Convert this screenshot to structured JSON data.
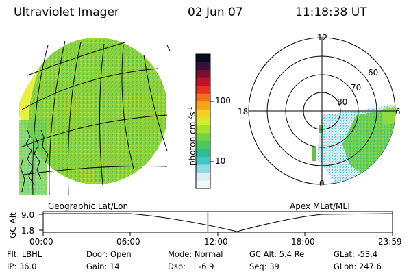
{
  "header": {
    "title": "Ultraviolet Imager",
    "date": "02 Jun 07",
    "time": "11:18:38 UT"
  },
  "left_panel": {
    "label": "Geographic Lat/Lon"
  },
  "colorbar": {
    "unit_text": "photon cm",
    "unit_exp1": "-2",
    "unit_s": "s",
    "unit_exp2": "-1",
    "tick_100": "100",
    "tick_10": "10",
    "scale": "log",
    "colors": [
      "#0b0b25",
      "#3a0f3a",
      "#7a0f2e",
      "#c0102a",
      "#ea2f1d",
      "#f4701a",
      "#f7a418",
      "#f6d021",
      "#d8ea2c",
      "#a6e22b",
      "#72d33a",
      "#45c85c",
      "#2bbf8e",
      "#3ec6c8",
      "#8fd9e4",
      "#d6eef4",
      "#f2f7f8"
    ]
  },
  "right_panel": {
    "label": "Apex MLat/MLT",
    "mlt_labels": [
      "12",
      "18",
      "6",
      "0"
    ],
    "lat_labels": [
      "60",
      "70",
      "80"
    ]
  },
  "altitude_plot": {
    "ylabel": "GC Alt",
    "y_max": "9.0",
    "y_min": "1.8",
    "x_ticks": [
      "00:00",
      "06:00",
      "12:00",
      "18:00",
      "23:59"
    ],
    "marker_time_fraction": 0.4714
  },
  "info": {
    "flt": "Flt: LBHL",
    "ip": "IP: 36.0",
    "door": "Door: Open",
    "gain": "Gain: 14",
    "mode": "Mode: Normal",
    "dsp_label": "Dsp:",
    "dsp_value": "-6.9",
    "gcalt": "GC Alt: 5.4 Re",
    "seq": "Seq: 39",
    "glat": "GLat: -53.4",
    "glon": "GLon: 247.6"
  }
}
